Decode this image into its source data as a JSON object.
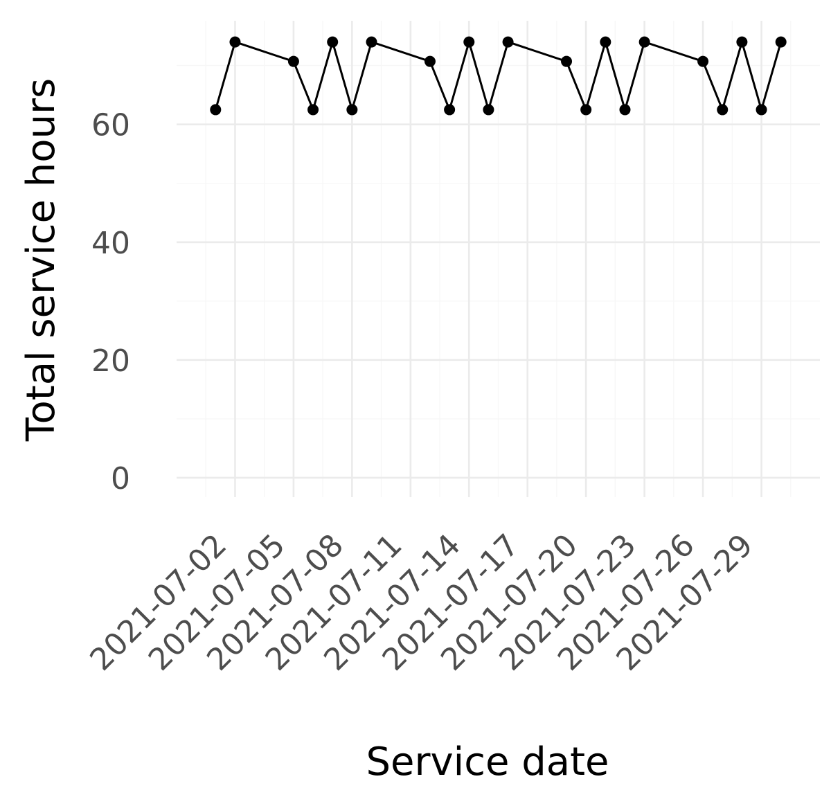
{
  "chart_data": {
    "type": "line",
    "title": "",
    "xlabel": "Service date",
    "ylabel": "Total service hours",
    "x_tick_labels": [
      "2021-07-02",
      "2021-07-05",
      "2021-07-08",
      "2021-07-11",
      "2021-07-14",
      "2021-07-17",
      "2021-07-20",
      "2021-07-23",
      "2021-07-26",
      "2021-07-29"
    ],
    "y_tick_labels": [
      "0",
      "20",
      "40",
      "60"
    ],
    "y_ticks": [
      0,
      20,
      40,
      60
    ],
    "ylim": [
      -3.3,
      77.6
    ],
    "xlim": [
      "2021-06-29",
      "2021-08-01"
    ],
    "grid": true,
    "legend": "none",
    "series": [
      {
        "color": "#000000",
        "points": [
          {
            "x": "2021-07-01",
            "y": 62.5
          },
          {
            "x": "2021-07-02",
            "y": 74.0
          },
          {
            "x": "2021-07-05",
            "y": 70.7
          },
          {
            "x": "2021-07-06",
            "y": 62.5
          },
          {
            "x": "2021-07-07",
            "y": 74.0
          },
          {
            "x": "2021-07-08",
            "y": 62.5
          },
          {
            "x": "2021-07-09",
            "y": 74.0
          },
          {
            "x": "2021-07-12",
            "y": 70.7
          },
          {
            "x": "2021-07-13",
            "y": 62.5
          },
          {
            "x": "2021-07-14",
            "y": 74.0
          },
          {
            "x": "2021-07-15",
            "y": 62.5
          },
          {
            "x": "2021-07-16",
            "y": 74.0
          },
          {
            "x": "2021-07-19",
            "y": 70.7
          },
          {
            "x": "2021-07-20",
            "y": 62.5
          },
          {
            "x": "2021-07-21",
            "y": 74.0
          },
          {
            "x": "2021-07-22",
            "y": 62.5
          },
          {
            "x": "2021-07-23",
            "y": 74.0
          },
          {
            "x": "2021-07-26",
            "y": 70.7
          },
          {
            "x": "2021-07-27",
            "y": 62.5
          },
          {
            "x": "2021-07-28",
            "y": 74.0
          },
          {
            "x": "2021-07-29",
            "y": 62.5
          },
          {
            "x": "2021-07-30",
            "y": 74.0
          }
        ]
      }
    ]
  }
}
